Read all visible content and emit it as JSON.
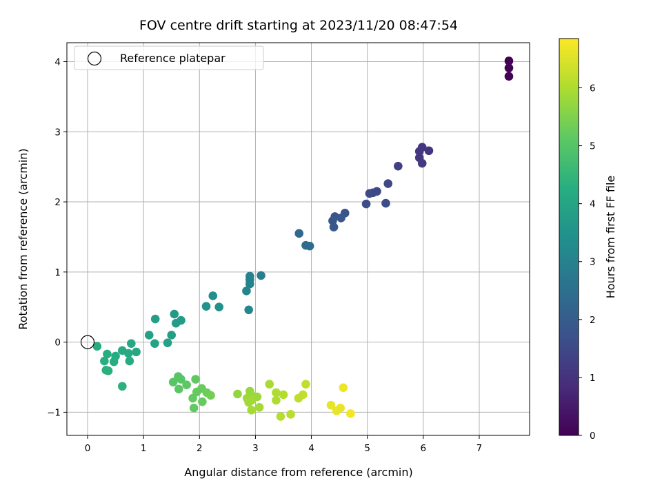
{
  "chart_data": {
    "type": "scatter",
    "title": "FOV centre drift starting at 2023/11/20 08:47:54",
    "xlabel": "Angular distance from reference (arcmin)",
    "ylabel": "Rotation from reference (arcmin)",
    "xlim": [
      -0.37,
      7.9
    ],
    "ylim": [
      -1.33,
      4.27
    ],
    "xticks": [
      0,
      1,
      2,
      3,
      4,
      5,
      6,
      7
    ],
    "yticks": [
      -1,
      0,
      1,
      2,
      3,
      4
    ],
    "xtick_labels": [
      "0",
      "1",
      "2",
      "3",
      "4",
      "5",
      "6",
      "7"
    ],
    "ytick_labels": [
      "−1",
      "0",
      "1",
      "2",
      "3",
      "4"
    ],
    "grid": true,
    "legend": {
      "location": "top-left",
      "entries": [
        {
          "label": "Reference platepar",
          "marker": "open-circle",
          "x": 0,
          "y": 0
        }
      ]
    },
    "colorbar": {
      "label": "Hours from first FF file",
      "colormap": "viridis",
      "range": [
        0,
        6.85
      ],
      "ticks": [
        0,
        1,
        2,
        3,
        4,
        5,
        6
      ],
      "tick_labels": [
        "0",
        "1",
        "2",
        "3",
        "4",
        "5",
        "6"
      ]
    },
    "series": [
      {
        "marker": "filled-circle",
        "points": [
          {
            "x": 7.53,
            "y": 4.01,
            "c": 0.0
          },
          {
            "x": 7.53,
            "y": 3.91,
            "c": 0.02
          },
          {
            "x": 7.53,
            "y": 3.79,
            "c": 0.04
          },
          {
            "x": 6.1,
            "y": 2.73,
            "c": 1.05
          },
          {
            "x": 5.98,
            "y": 2.78,
            "c": 1.08
          },
          {
            "x": 5.93,
            "y": 2.72,
            "c": 1.1
          },
          {
            "x": 5.93,
            "y": 2.63,
            "c": 1.12
          },
          {
            "x": 5.98,
            "y": 2.55,
            "c": 1.15
          },
          {
            "x": 5.55,
            "y": 2.51,
            "c": 1.3
          },
          {
            "x": 5.37,
            "y": 2.26,
            "c": 1.45
          },
          {
            "x": 5.17,
            "y": 2.15,
            "c": 1.5
          },
          {
            "x": 5.1,
            "y": 2.13,
            "c": 1.52
          },
          {
            "x": 5.04,
            "y": 2.12,
            "c": 1.55
          },
          {
            "x": 4.98,
            "y": 1.97,
            "c": 1.6
          },
          {
            "x": 5.33,
            "y": 1.98,
            "c": 1.62
          },
          {
            "x": 4.6,
            "y": 1.84,
            "c": 1.75
          },
          {
            "x": 4.42,
            "y": 1.79,
            "c": 1.8
          },
          {
            "x": 4.53,
            "y": 1.77,
            "c": 1.85
          },
          {
            "x": 4.38,
            "y": 1.73,
            "c": 1.88
          },
          {
            "x": 4.4,
            "y": 1.64,
            "c": 1.9
          },
          {
            "x": 3.78,
            "y": 1.55,
            "c": 2.3
          },
          {
            "x": 3.9,
            "y": 1.38,
            "c": 2.4
          },
          {
            "x": 3.97,
            "y": 1.37,
            "c": 2.42
          },
          {
            "x": 3.1,
            "y": 0.95,
            "c": 2.9
          },
          {
            "x": 2.9,
            "y": 0.94,
            "c": 3.0
          },
          {
            "x": 2.9,
            "y": 0.89,
            "c": 3.02
          },
          {
            "x": 2.9,
            "y": 0.83,
            "c": 3.05
          },
          {
            "x": 2.84,
            "y": 0.73,
            "c": 3.1
          },
          {
            "x": 2.88,
            "y": 0.46,
            "c": 3.15
          },
          {
            "x": 2.24,
            "y": 0.66,
            "c": 3.4
          },
          {
            "x": 2.12,
            "y": 0.51,
            "c": 3.45
          },
          {
            "x": 2.35,
            "y": 0.5,
            "c": 3.42
          },
          {
            "x": 1.55,
            "y": 0.4,
            "c": 3.7
          },
          {
            "x": 1.67,
            "y": 0.31,
            "c": 3.72
          },
          {
            "x": 1.58,
            "y": 0.27,
            "c": 3.75
          },
          {
            "x": 1.21,
            "y": 0.33,
            "c": 3.8
          },
          {
            "x": 1.5,
            "y": 0.1,
            "c": 3.85
          },
          {
            "x": 1.1,
            "y": 0.1,
            "c": 3.88
          },
          {
            "x": 1.43,
            "y": -0.01,
            "c": 3.9
          },
          {
            "x": 1.2,
            "y": -0.02,
            "c": 3.92
          },
          {
            "x": 0.17,
            "y": -0.06,
            "c": 4.2
          },
          {
            "x": 0.78,
            "y": -0.02,
            "c": 4.1
          },
          {
            "x": 0.62,
            "y": -0.12,
            "c": 4.12
          },
          {
            "x": 0.87,
            "y": -0.14,
            "c": 4.08
          },
          {
            "x": 0.73,
            "y": -0.16,
            "c": 4.14
          },
          {
            "x": 0.35,
            "y": -0.17,
            "c": 4.25
          },
          {
            "x": 0.5,
            "y": -0.2,
            "c": 4.22
          },
          {
            "x": 0.75,
            "y": -0.27,
            "c": 4.18
          },
          {
            "x": 0.47,
            "y": -0.28,
            "c": 4.23
          },
          {
            "x": 0.3,
            "y": -0.27,
            "c": 4.27
          },
          {
            "x": 0.33,
            "y": -0.4,
            "c": 4.3
          },
          {
            "x": 0.37,
            "y": -0.41,
            "c": 4.32
          },
          {
            "x": 0.62,
            "y": -0.63,
            "c": 4.35
          },
          {
            "x": 1.62,
            "y": -0.49,
            "c": 5.0
          },
          {
            "x": 1.67,
            "y": -0.53,
            "c": 5.05
          },
          {
            "x": 1.53,
            "y": -0.57,
            "c": 5.02
          },
          {
            "x": 1.93,
            "y": -0.53,
            "c": 5.15
          },
          {
            "x": 1.77,
            "y": -0.61,
            "c": 5.1
          },
          {
            "x": 1.63,
            "y": -0.67,
            "c": 5.08
          },
          {
            "x": 2.04,
            "y": -0.66,
            "c": 5.25
          },
          {
            "x": 2.13,
            "y": -0.72,
            "c": 5.3
          },
          {
            "x": 1.95,
            "y": -0.71,
            "c": 5.2
          },
          {
            "x": 2.2,
            "y": -0.76,
            "c": 5.35
          },
          {
            "x": 1.88,
            "y": -0.8,
            "c": 5.18
          },
          {
            "x": 2.05,
            "y": -0.85,
            "c": 5.22
          },
          {
            "x": 1.9,
            "y": -0.94,
            "c": 5.16
          },
          {
            "x": 2.68,
            "y": -0.74,
            "c": 5.7
          },
          {
            "x": 2.9,
            "y": -0.7,
            "c": 5.75
          },
          {
            "x": 2.93,
            "y": -0.76,
            "c": 5.78
          },
          {
            "x": 3.03,
            "y": -0.78,
            "c": 5.8
          },
          {
            "x": 2.85,
            "y": -0.8,
            "c": 5.82
          },
          {
            "x": 2.93,
            "y": -0.83,
            "c": 5.85
          },
          {
            "x": 2.88,
            "y": -0.86,
            "c": 5.88
          },
          {
            "x": 3.25,
            "y": -0.6,
            "c": 5.95
          },
          {
            "x": 3.37,
            "y": -0.72,
            "c": 6.0
          },
          {
            "x": 3.5,
            "y": -0.75,
            "c": 6.05
          },
          {
            "x": 3.37,
            "y": -0.83,
            "c": 6.02
          },
          {
            "x": 3.07,
            "y": -0.93,
            "c": 5.9
          },
          {
            "x": 2.93,
            "y": -0.97,
            "c": 5.92
          },
          {
            "x": 3.45,
            "y": -1.06,
            "c": 6.1
          },
          {
            "x": 3.63,
            "y": -1.03,
            "c": 6.12
          },
          {
            "x": 3.9,
            "y": -0.6,
            "c": 6.2
          },
          {
            "x": 3.85,
            "y": -0.75,
            "c": 6.22
          },
          {
            "x": 3.77,
            "y": -0.8,
            "c": 6.18
          },
          {
            "x": 4.57,
            "y": -0.65,
            "c": 6.7
          },
          {
            "x": 4.35,
            "y": -0.9,
            "c": 6.6
          },
          {
            "x": 4.52,
            "y": -0.94,
            "c": 6.65
          },
          {
            "x": 4.45,
            "y": -0.98,
            "c": 6.62
          },
          {
            "x": 4.7,
            "y": -1.02,
            "c": 6.75
          }
        ]
      }
    ]
  }
}
